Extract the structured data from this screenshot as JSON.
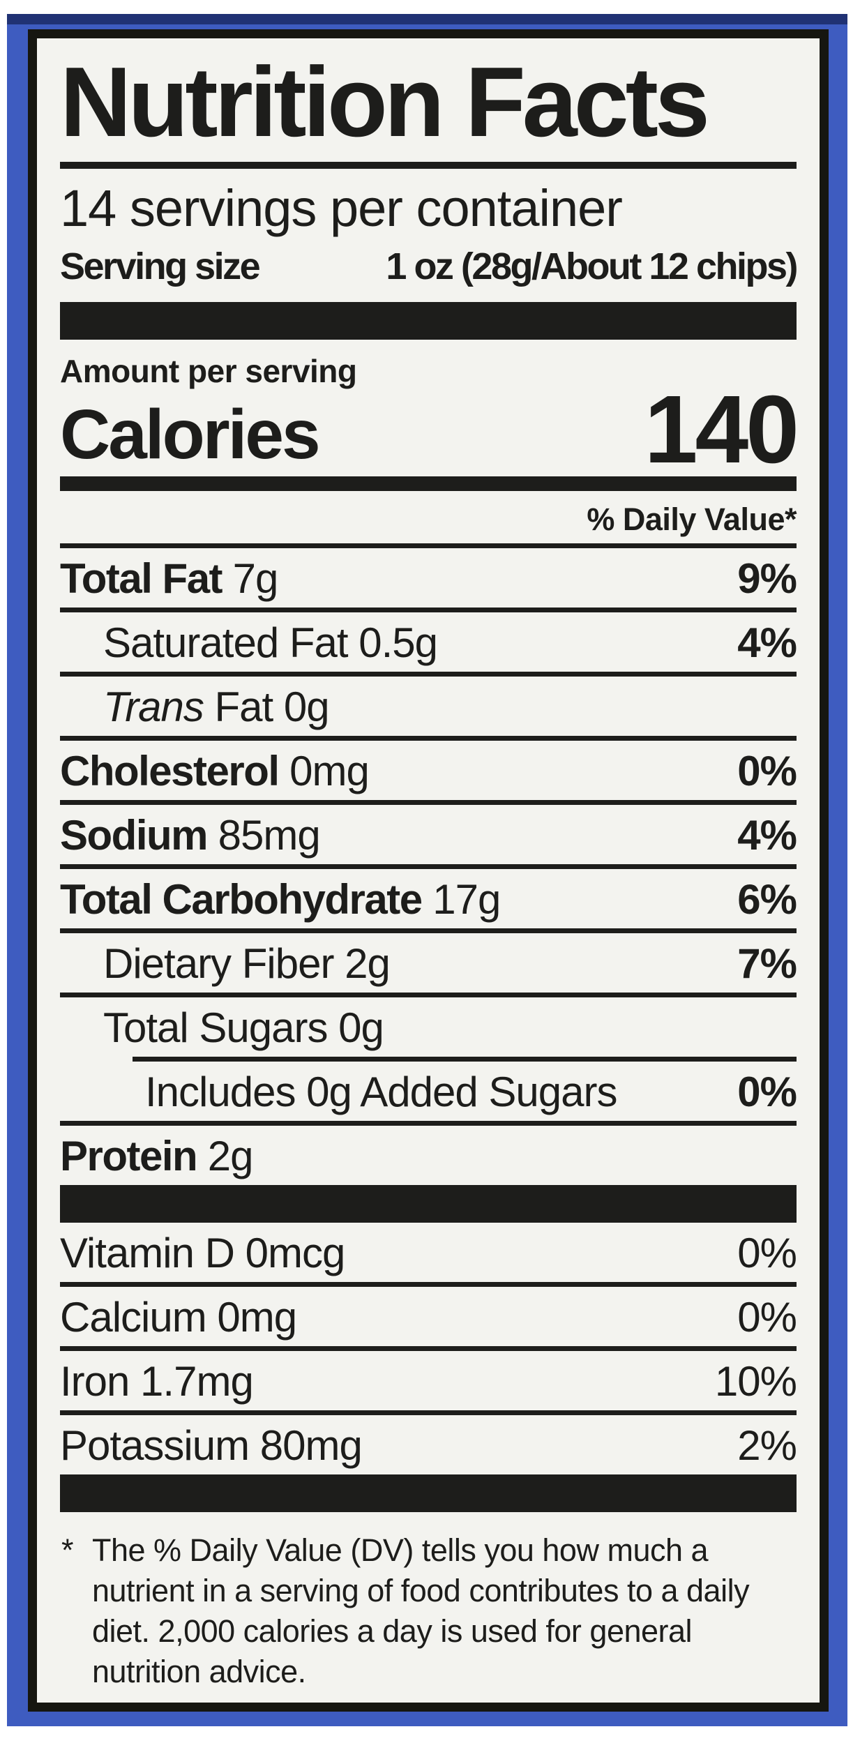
{
  "colors": {
    "page_bg": "#ffffff",
    "package_blue": "#3e5cc0",
    "package_navy": "#1b2a66",
    "label_bg": "#f3f3ef",
    "ink": "#1d1d1b"
  },
  "label": {
    "title": "Nutrition Facts",
    "servings_per_container": "14 servings per container",
    "serving_size_label": "Serving size",
    "serving_size_value": "1 oz (28g/About 12 chips)",
    "amount_per_serving": "Amount per serving",
    "calories_label": "Calories",
    "calories_value": "140",
    "daily_value_header": "% Daily Value*",
    "nutrients": [
      {
        "bold": "Total Fat",
        "rest": "7g",
        "dv": "9%"
      },
      {
        "rest": "Saturated Fat 0.5g",
        "dv": "4%"
      },
      {
        "italic": "Trans",
        "rest": "Fat 0g",
        "dv": ""
      },
      {
        "bold": "Cholesterol",
        "rest": "0mg",
        "dv": "0%"
      },
      {
        "bold": "Sodium",
        "rest": "85mg",
        "dv": "4%"
      },
      {
        "bold": "Total Carbohydrate",
        "rest": "17g",
        "dv": "6%"
      },
      {
        "rest": "Dietary Fiber 2g",
        "dv": "7%"
      },
      {
        "rest": "Total Sugars 0g",
        "dv": ""
      },
      {
        "rest": "Includes 0g Added Sugars",
        "dv": "0%"
      },
      {
        "bold": "Protein",
        "rest": "2g",
        "dv": ""
      }
    ],
    "vitamins": [
      {
        "name": "Vitamin D 0mcg",
        "dv": "0%"
      },
      {
        "name": "Calcium 0mg",
        "dv": "0%"
      },
      {
        "name": "Iron 1.7mg",
        "dv": "10%"
      },
      {
        "name": "Potassium 80mg",
        "dv": "2%"
      }
    ],
    "footnote_star": "*",
    "footnote_lines": [
      "The % Daily Value (DV) tells you how much a",
      "nutrient in a serving of food contributes to a daily",
      "diet. 2,000 calories a day is used for general",
      "nutrition advice."
    ]
  }
}
